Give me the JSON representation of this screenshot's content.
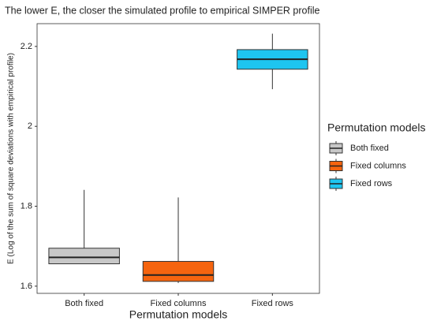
{
  "chart_data": {
    "type": "box",
    "title": "The lower E, the closer the simulated profile to empirical SIMPER profile",
    "x_label": "Permutation models",
    "y_label": "E (Log of the sum of square deviations with empirical profile)",
    "legend_title": "Permutation models",
    "categories": [
      "Both fixed",
      "Fixed columns",
      "Fixed rows"
    ],
    "series": [
      {
        "name": "Both fixed",
        "color": "#c8c8c8",
        "min": 1.656,
        "q1": 1.656,
        "median": 1.672,
        "q3": 1.695,
        "max": 1.841
      },
      {
        "name": "Fixed columns",
        "color": "#f5640f",
        "min": 1.608,
        "q1": 1.612,
        "median": 1.628,
        "q3": 1.662,
        "max": 1.822
      },
      {
        "name": "Fixed rows",
        "color": "#1ec5f0",
        "min": 2.093,
        "q1": 2.143,
        "median": 2.168,
        "q3": 2.192,
        "max": 2.232
      }
    ],
    "ylim": [
      1.582,
      2.257
    ],
    "yticks": [
      1.6,
      1.8,
      2.0,
      2.2
    ],
    "legend": "right"
  }
}
